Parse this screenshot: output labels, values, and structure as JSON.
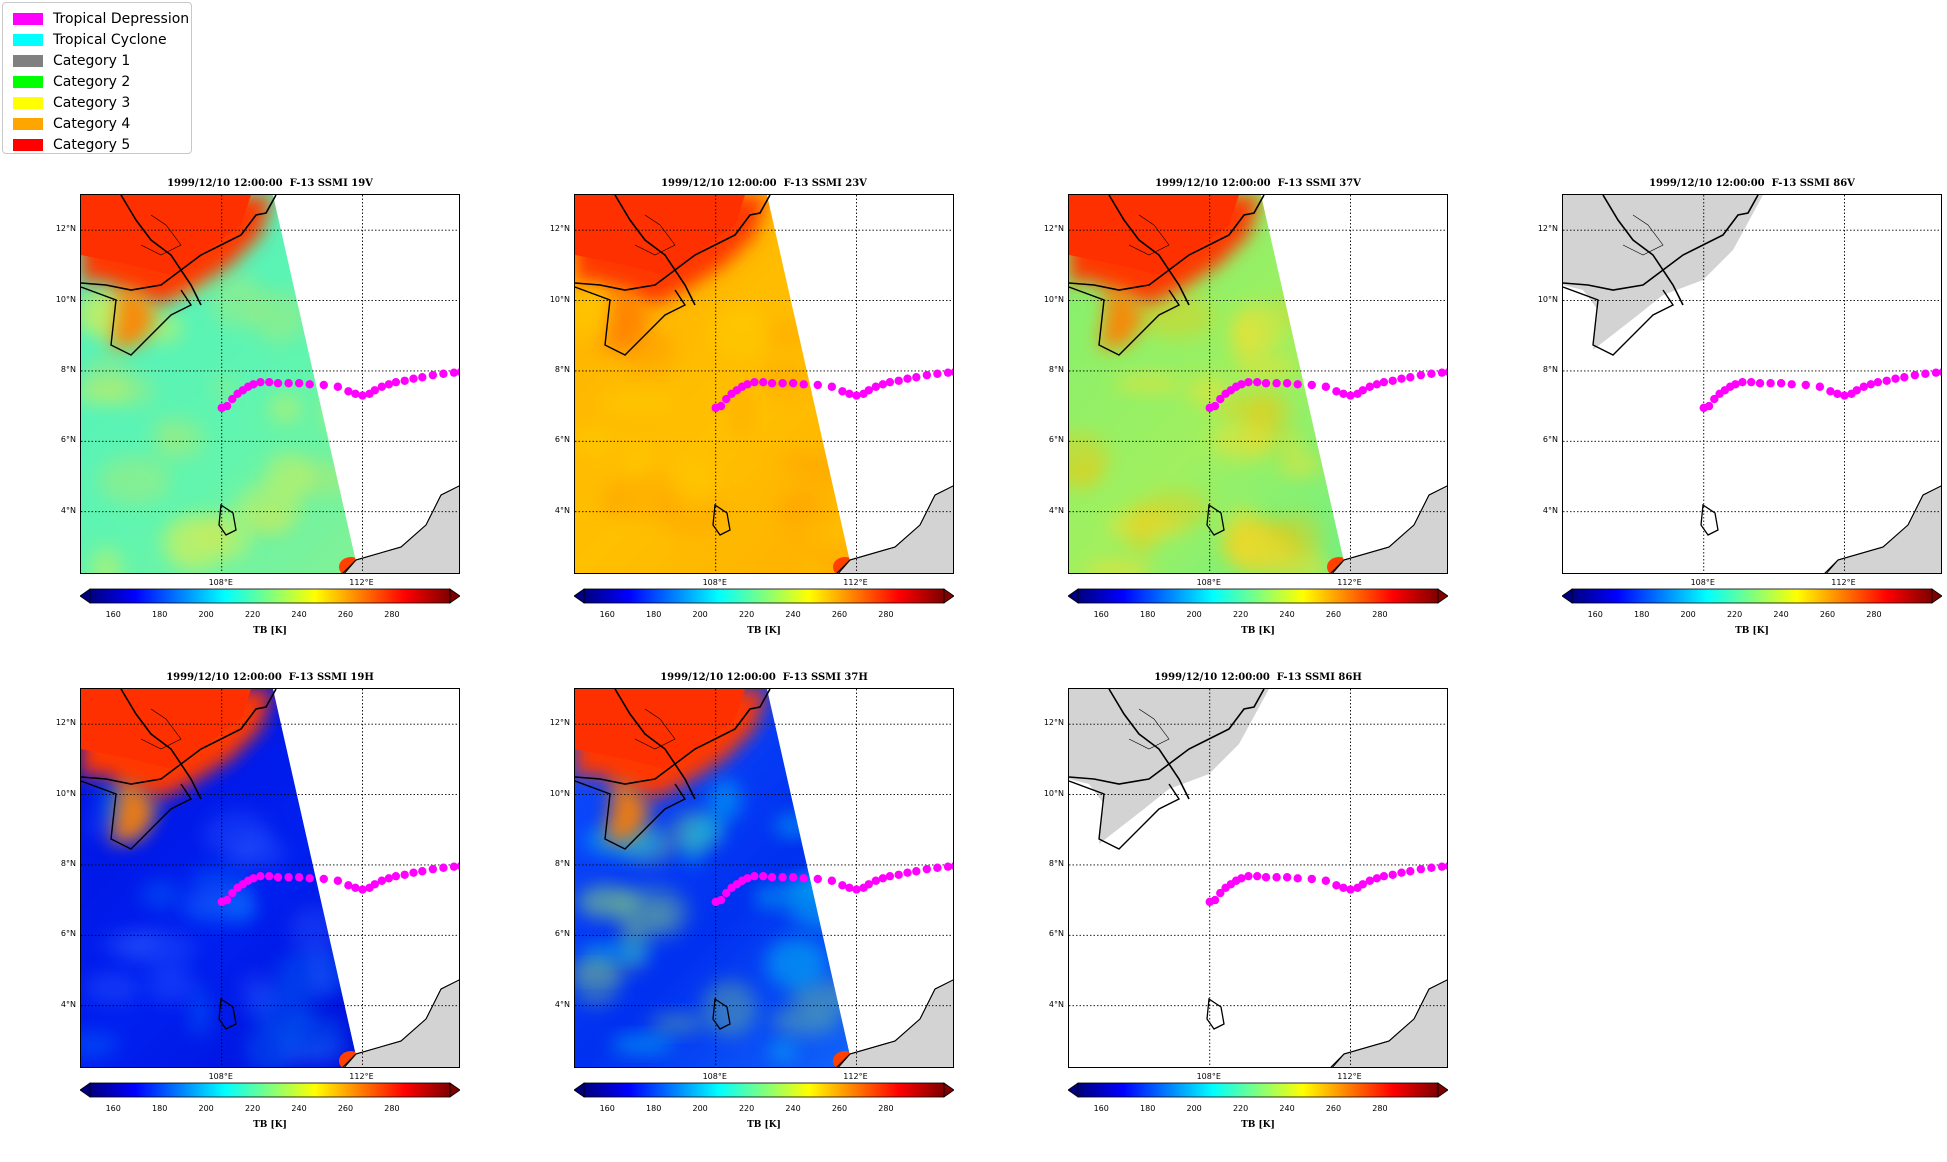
{
  "legend": {
    "items": [
      {
        "label": "Tropical Depression",
        "color": "#ff00ff"
      },
      {
        "label": "Tropical Cyclone",
        "color": "#00ffff"
      },
      {
        "label": "Category 1",
        "color": "#808080"
      },
      {
        "label": "Category 2",
        "color": "#00ff00"
      },
      {
        "label": "Category 3",
        "color": "#ffff00"
      },
      {
        "label": "Category 4",
        "color": "#ffa500"
      },
      {
        "label": "Category 5",
        "color": "#ff0000"
      }
    ]
  },
  "panels": [
    {
      "title": "1999/12/10 12:00:00  F-13 SSMI 19V",
      "field": "warm-mid"
    },
    {
      "title": "1999/12/10 12:00:00  F-13 SSMI 23V",
      "field": "warm-high"
    },
    {
      "title": "1999/12/10 12:00:00  F-13 SSMI 37V",
      "field": "warm-mixed"
    },
    {
      "title": "1999/12/10 12:00:00  F-13 SSMI 86V",
      "field": "none"
    },
    {
      "title": "1999/12/10 12:00:00  F-13 SSMI 19H",
      "field": "cold"
    },
    {
      "title": "1999/12/10 12:00:00  F-13 SSMI 37H",
      "field": "cold-mixed"
    },
    {
      "title": "1999/12/10 12:00:00  F-13 SSMI 86H",
      "field": "none"
    }
  ],
  "map": {
    "lat_labels": [
      "12°N",
      "10°N",
      "8°N",
      "6°N",
      "4°N"
    ],
    "lon_labels": [
      "108°E",
      "112°E"
    ],
    "lon_range": [
      104,
      114.8
    ],
    "lat_range": [
      2.2,
      13.0
    ]
  },
  "colorbar": {
    "label": "TB [K]",
    "ticks": [
      "160",
      "180",
      "200",
      "220",
      "240",
      "260",
      "280"
    ],
    "range": [
      150,
      305
    ],
    "colors": [
      "#00007f",
      "#0000ff",
      "#007fff",
      "#00ffff",
      "#7fff7f",
      "#ffff00",
      "#ff7f00",
      "#ff0000",
      "#7f0000"
    ]
  },
  "track": {
    "color": "#ff00ff",
    "points": [
      [
        108.0,
        6.95
      ],
      [
        108.15,
        7.0
      ],
      [
        108.3,
        7.2
      ],
      [
        108.45,
        7.35
      ],
      [
        108.6,
        7.45
      ],
      [
        108.75,
        7.55
      ],
      [
        108.9,
        7.62
      ],
      [
        109.1,
        7.68
      ],
      [
        109.35,
        7.68
      ],
      [
        109.6,
        7.65
      ],
      [
        109.9,
        7.65
      ],
      [
        110.2,
        7.65
      ],
      [
        110.5,
        7.62
      ],
      [
        110.9,
        7.6
      ],
      [
        111.3,
        7.55
      ],
      [
        111.6,
        7.42
      ],
      [
        111.8,
        7.35
      ],
      [
        112.0,
        7.3
      ],
      [
        112.2,
        7.35
      ],
      [
        112.35,
        7.45
      ],
      [
        112.55,
        7.55
      ],
      [
        112.75,
        7.62
      ],
      [
        112.95,
        7.68
      ],
      [
        113.2,
        7.72
      ],
      [
        113.45,
        7.78
      ],
      [
        113.7,
        7.82
      ],
      [
        114.0,
        7.88
      ],
      [
        114.3,
        7.92
      ],
      [
        114.6,
        7.95
      ],
      [
        114.8,
        7.97
      ]
    ]
  }
}
